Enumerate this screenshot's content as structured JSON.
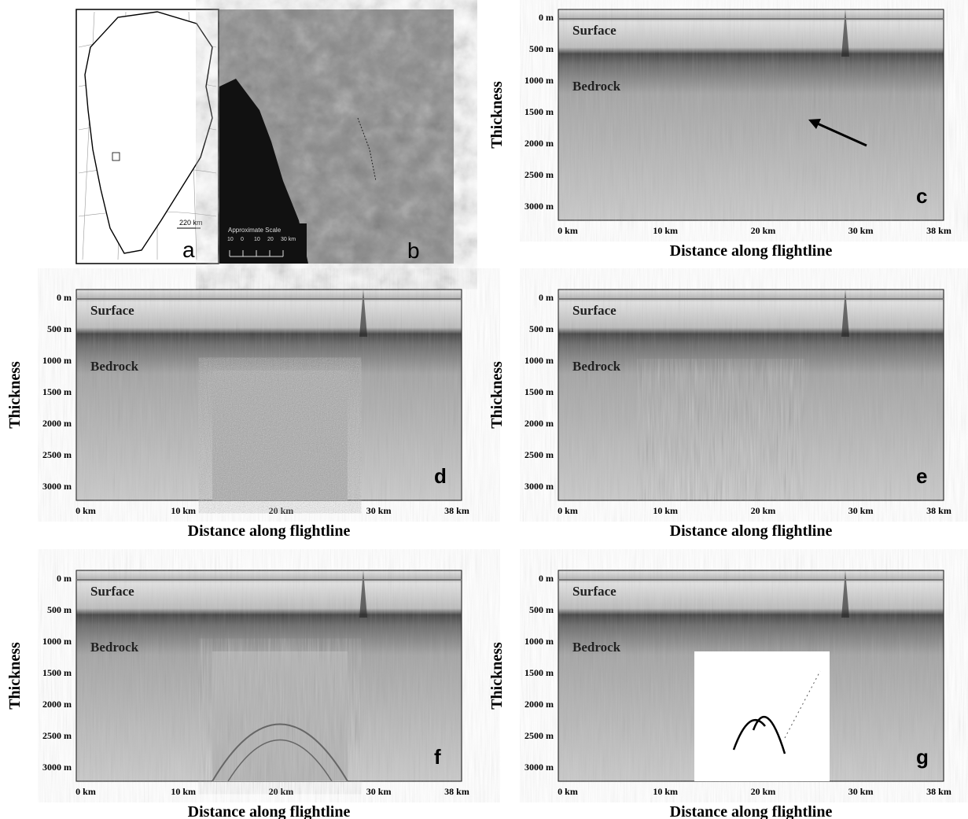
{
  "map_panel": {
    "label": "a",
    "scale_label": "220 km"
  },
  "satellite_panel": {
    "label": "b",
    "scale_title": "Approximate Scale",
    "scale_ticks": [
      "10",
      "0",
      "10",
      "20",
      "30 km"
    ]
  },
  "axes": {
    "x_title": "Distance along flightline",
    "y_title": "Thickness",
    "x_ticks": [
      "0 km",
      "10 km",
      "20 km",
      "30 km",
      "38 km"
    ],
    "y_ticks": [
      "0 m",
      "500 m",
      "1000 m",
      "1500 m",
      "2000 m",
      "2500 m",
      "3000 m"
    ],
    "layer_labels": [
      "Surface",
      "Bedrock"
    ]
  },
  "panels": [
    {
      "label": "c"
    },
    {
      "label": "d"
    },
    {
      "label": "e"
    },
    {
      "label": "f"
    },
    {
      "label": "g"
    }
  ]
}
